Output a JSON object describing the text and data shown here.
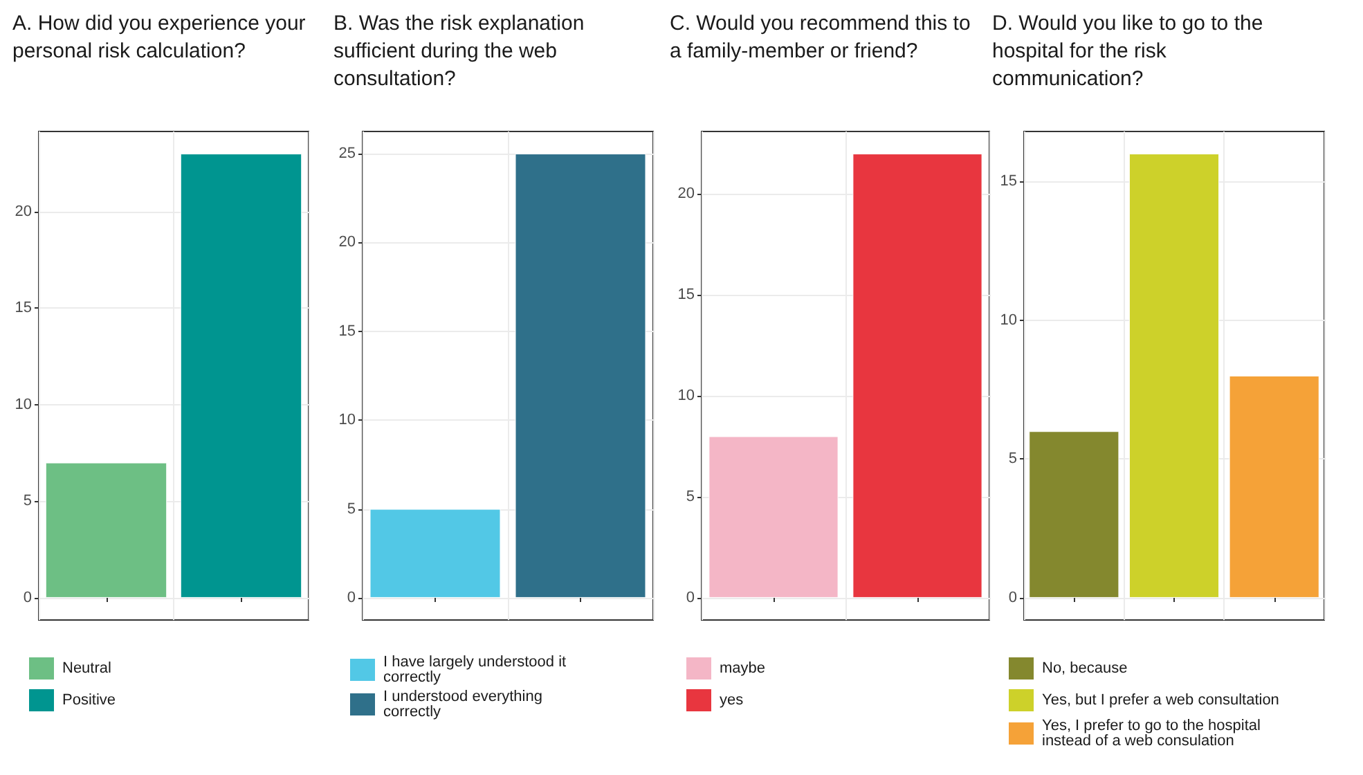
{
  "chart_data": [
    {
      "type": "bar",
      "title": "A. How did you experience your personal risk calculation?",
      "categories": [
        null,
        null
      ],
      "stacked": true,
      "series": [
        {
          "name": "Neutral",
          "color": "#6dbf84",
          "values": [
            7,
            null
          ]
        },
        {
          "name": "Positive",
          "color": "#009590",
          "values": [
            null,
            23
          ]
        }
      ],
      "ylim": [
        -1.15,
        24.15
      ],
      "yticks": [
        0,
        5,
        10,
        15,
        20
      ],
      "grid": true,
      "legend": "bottom left",
      "tick_labels": "y"
    },
    {
      "type": "bar",
      "title": "B. Was the risk explanation sufficient during the web consultation?",
      "categories": [
        null,
        null
      ],
      "stacked": true,
      "series": [
        {
          "name": "I have largely understood it correctly",
          "color": "#52c8e6",
          "values": [
            5,
            null
          ]
        },
        {
          "name": "I understood everything correctly",
          "color": "#2f708a",
          "values": [
            null,
            25
          ]
        }
      ],
      "ylim": [
        -1.25,
        26.25
      ],
      "yticks": [
        0,
        5,
        10,
        15,
        20,
        25
      ],
      "grid": true,
      "legend": "bottom left",
      "tick_labels": "y"
    },
    {
      "type": "bar",
      "title": "C. Would you recommend this to a family-member or friend?",
      "categories": [
        null,
        null
      ],
      "stacked": true,
      "series": [
        {
          "name": "maybe",
          "color": "#f4b6c6",
          "values": [
            8,
            null
          ]
        },
        {
          "name": "yes",
          "color": "#e8363f",
          "values": [
            null,
            22
          ]
        }
      ],
      "ylim": [
        -1.1,
        23.1
      ],
      "yticks": [
        0,
        5,
        10,
        15,
        20
      ],
      "grid": true,
      "legend": "bottom left",
      "tick_labels": "y"
    },
    {
      "type": "bar",
      "title": "D. Would you like to go to the hospital for the risk communication?",
      "categories": [
        null,
        null,
        null
      ],
      "stacked": true,
      "series": [
        {
          "name": "No, because",
          "color": "#84882e",
          "values": [
            6,
            null,
            null
          ]
        },
        {
          "name": "Yes, but I prefer a web consultation",
          "color": "#cdd12a",
          "values": [
            null,
            16,
            null
          ]
        },
        {
          "name": "Yes, I prefer to go to the hospital instead of a web consulation",
          "color": "#f5a238",
          "values": [
            null,
            null,
            8
          ]
        }
      ],
      "ylim": [
        -0.8,
        16.8
      ],
      "yticks": [
        0,
        5,
        10,
        15
      ],
      "grid": true,
      "legend": "bottom left",
      "tick_labels": "y"
    }
  ]
}
